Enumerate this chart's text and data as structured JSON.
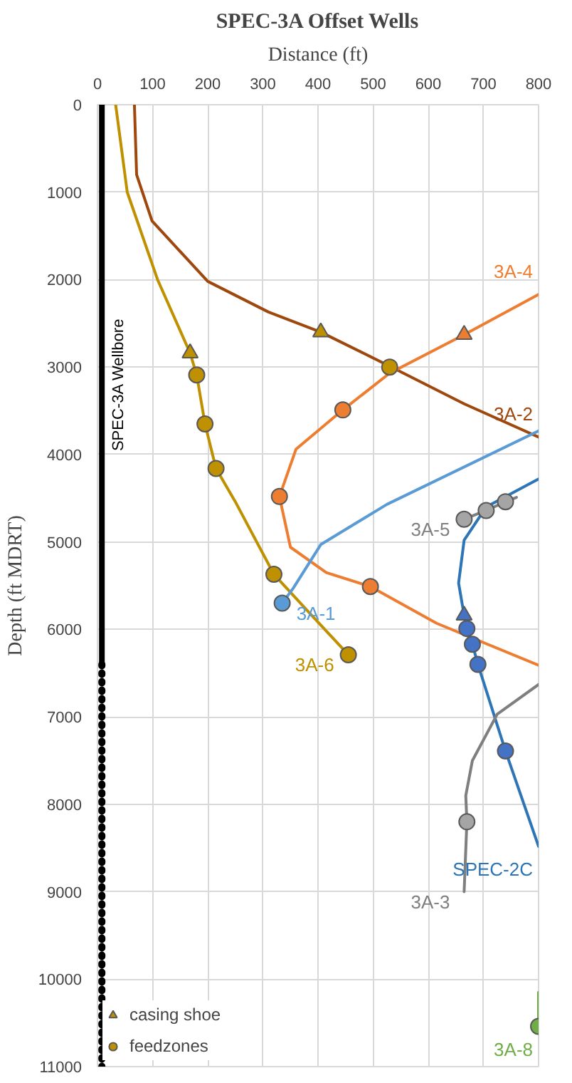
{
  "chart_data": {
    "type": "line",
    "title": "SPEC-3A Offset Wells",
    "xlabel": "Distance (ft)",
    "ylabel": "Depth (ft MDRT)",
    "xlim": [
      0,
      800
    ],
    "xticks": [
      0,
      100,
      200,
      300,
      400,
      500,
      600,
      700,
      800
    ],
    "ylim": [
      11000,
      0
    ],
    "yticks": [
      0,
      1000,
      2000,
      3000,
      4000,
      5000,
      6000,
      7000,
      8000,
      9000,
      10000,
      11000
    ],
    "grid": true,
    "legend": "bottom left",
    "marker": "none",
    "line_style": "solid",
    "series": [
      {
        "name": "SPEC-3A Wellbore",
        "color": "#000000",
        "x": [
          8,
          8
        ],
        "values": [
          0,
          6400
        ]
      },
      {
        "name": "3A-2",
        "color": "#9e480e",
        "x": [
          67,
          71,
          99,
          200,
          310,
          405,
          530,
          665,
          800
        ],
        "values": [
          0,
          800,
          1330,
          2020,
          2370,
          2600,
          2990,
          3420,
          3800
        ]
      },
      {
        "name": "3A-6",
        "color": "#bf9000",
        "x": [
          33,
          54,
          109,
          168,
          180,
          195,
          215,
          250,
          320,
          390,
          455
        ],
        "values": [
          0,
          1000,
          2000,
          2840,
          3090,
          3650,
          4160,
          4540,
          5370,
          5850,
          6290
        ]
      },
      {
        "name": "3A-4",
        "color": "#ed7d31",
        "x": [
          800,
          615,
          495,
          415,
          350,
          330,
          360,
          445,
          530,
          665,
          800
        ],
        "values": [
          6410,
          5930,
          5510,
          5350,
          5060,
          4480,
          3940,
          3490,
          3070,
          2630,
          2170
        ]
      },
      {
        "name": "3A-1",
        "color": "#5b9bd5",
        "x": [
          800,
          525,
          405,
          355,
          335
        ],
        "values": [
          3730,
          4570,
          5030,
          5530,
          5700
        ]
      },
      {
        "name": "3A-5",
        "color": "#7f7f7f",
        "x": [
          760,
          740,
          705,
          665
        ],
        "values": [
          4490,
          4540,
          4640,
          4740
        ]
      },
      {
        "name": "SPEC-2C",
        "color": "#2e75b6",
        "x": [
          800,
          705,
          665,
          655,
          665,
          670,
          680,
          690,
          740,
          800
        ],
        "values": [
          4280,
          4600,
          4980,
          5470,
          5840,
          5990,
          6170,
          6400,
          7390,
          8480
        ]
      },
      {
        "name": "3A-3",
        "color": "#7f7f7f",
        "x": [
          800,
          725,
          680,
          668,
          670,
          665
        ],
        "values": [
          6630,
          6970,
          7500,
          7900,
          8200,
          9000
        ]
      },
      {
        "name": "3A-8",
        "color": "#70ad47",
        "x": [
          800,
          800
        ],
        "values": [
          10150,
          10540
        ]
      },
      {
        "color": "#000000",
        "x": [
          8,
          8
        ],
        "values": [
          6400,
          11000
        ],
        "line_style": "dotted"
      },
      {
        "name": "casing shoe",
        "type": "scatter",
        "marker": "triangle",
        "x": [
          168,
          405,
          665,
          665
        ],
        "values": [
          2840,
          2600,
          2630,
          5840
        ],
        "colors": [
          "#bf9000",
          "#bf9000",
          "#ed7d31",
          "#4472c4"
        ]
      },
      {
        "name": "feedzones",
        "type": "scatter",
        "marker": "circle",
        "x": [
          180,
          195,
          215,
          320,
          455,
          530,
          445,
          330,
          495,
          335,
          665,
          705,
          740,
          670,
          680,
          690,
          740,
          670,
          800
        ],
        "values": [
          3090,
          3650,
          4160,
          5370,
          6290,
          3000,
          3490,
          4480,
          5510,
          5700,
          4740,
          4640,
          4540,
          5990,
          6170,
          6400,
          7390,
          8200,
          10540
        ],
        "colors": [
          "#bf9000",
          "#bf9000",
          "#bf9000",
          "#bf9000",
          "#bf9000",
          "#bf9000",
          "#ed7d31",
          "#ed7d31",
          "#ed7d31",
          "#5b9bd5",
          "#a5a5a5",
          "#a5a5a5",
          "#a5a5a5",
          "#4472c4",
          "#4472c4",
          "#4472c4",
          "#4472c4",
          "#a5a5a5",
          "#70ad47"
        ]
      }
    ]
  }
}
